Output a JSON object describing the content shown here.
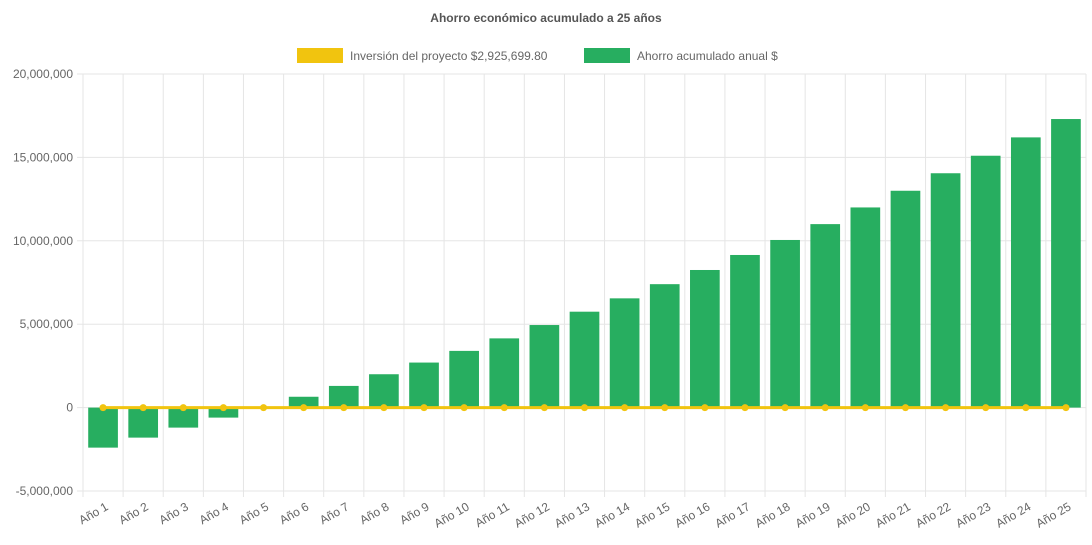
{
  "chart_data": {
    "type": "bar",
    "title": "Ahorro económico acumulado a 25 años",
    "categories": [
      "Año 1",
      "Año 2",
      "Año 3",
      "Año 4",
      "Año 5",
      "Año 6",
      "Año 7",
      "Año 8",
      "Año 9",
      "Año 10",
      "Año 11",
      "Año 12",
      "Año 13",
      "Año 14",
      "Año 15",
      "Año 16",
      "Año 17",
      "Año 18",
      "Año 19",
      "Año 20",
      "Año 21",
      "Año 22",
      "Año 23",
      "Año 24",
      "Año 25"
    ],
    "series": [
      {
        "name": "Inversión del proyecto $2,925,699.80",
        "type": "line",
        "color": "#f1c40f",
        "values": [
          0,
          0,
          0,
          0,
          0,
          0,
          0,
          0,
          0,
          0,
          0,
          0,
          0,
          0,
          0,
          0,
          0,
          0,
          0,
          0,
          0,
          0,
          0,
          0,
          0
        ]
      },
      {
        "name": "Ahorro acumulado anual $",
        "type": "bar",
        "color": "#27ae60",
        "values": [
          -2400000,
          -1800000,
          -1200000,
          -600000,
          0,
          650000,
          1300000,
          2000000,
          2700000,
          3400000,
          4150000,
          4950000,
          5750000,
          6550000,
          7400000,
          8250000,
          9150000,
          10050000,
          11000000,
          12000000,
          13000000,
          14050000,
          15100000,
          16200000,
          17300000
        ]
      }
    ],
    "ylim": [
      -5000000,
      20000000
    ],
    "yticks": [
      -5000000,
      0,
      5000000,
      10000000,
      15000000,
      20000000
    ],
    "ytick_labels": [
      "-5,000,000",
      "0",
      "5,000,000",
      "10,000,000",
      "15,000,000",
      "20,000,000"
    ],
    "grid": true,
    "legend_position": "top",
    "xlabel": "",
    "ylabel": ""
  }
}
